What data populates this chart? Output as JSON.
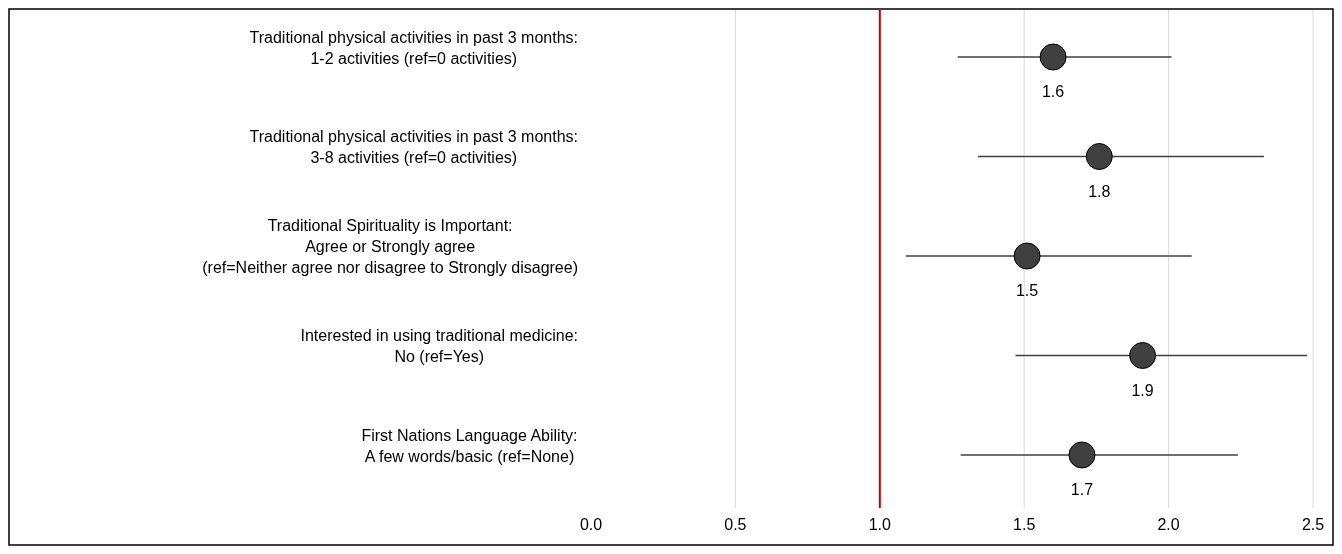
{
  "chart_data": {
    "type": "scatter",
    "orientation": "horizontal",
    "categories": [
      "Traditional physical activities in past 3 months:\n1-2 activities (ref=0 activities)",
      "Traditional physical activities in past 3 months:\n3-8 activities (ref=0 activities)",
      "Traditional Spirituality is Important:\nAgree or Strongly agree\n(ref=Neither agree nor disagree to Strongly disagree)",
      "Interested in using traditional medicine:\nNo (ref=Yes)",
      "First Nations Language Ability:\nA few words/basic (ref=None)"
    ],
    "values": [
      1.6,
      1.76,
      1.51,
      1.91,
      1.7
    ],
    "errors": [
      [
        1.27,
        2.01
      ],
      [
        1.34,
        2.33
      ],
      [
        1.09,
        2.08
      ],
      [
        1.47,
        2.48
      ],
      [
        1.28,
        2.24
      ]
    ],
    "value_labels": [
      "1.6",
      "1.8",
      "1.5",
      "1.9",
      "1.7"
    ],
    "color": "#404040",
    "marker": "circle",
    "xlim": [
      0,
      2.5
    ],
    "xticks": [
      {
        "value": 0,
        "label": "0.0"
      },
      {
        "value": 0.5,
        "label": "0.5"
      },
      {
        "value": 1,
        "label": "1.0"
      },
      {
        "value": 1.5,
        "label": "1.5"
      },
      {
        "value": 2,
        "label": "2.0"
      },
      {
        "value": 2.5,
        "label": "2.5"
      }
    ],
    "grid": "x",
    "ref_lines": [
      {
        "axis": "x",
        "value": 1,
        "color": "#c00000"
      }
    ]
  }
}
